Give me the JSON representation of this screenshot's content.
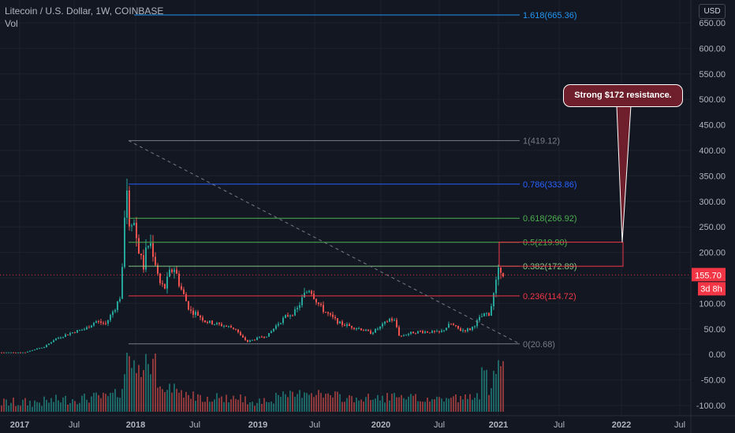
{
  "header": {
    "symbol_line": "Litecoin / U.S. Dollar, 1W, COINBASE",
    "volume_label": "Vol",
    "currency_button": "USD"
  },
  "colors": {
    "background": "#131722",
    "up": "#26a69a",
    "down": "#ef5350",
    "fib_1": "#787b86",
    "fib_0786": "#2962ff",
    "fib_0618": "#4caf50",
    "fib_05": "#4caf50",
    "fib_0382": "#81c784",
    "fib_0236": "#f23645",
    "fib_0": "#787b86",
    "fib_1618": "#2196f3",
    "price_tag": "#f23645",
    "callout_bg": "#6e1f2b"
  },
  "annotation": {
    "text": "Strong $172 resistance."
  },
  "price_tag": {
    "price": "155.70",
    "countdown": "3d 8h"
  },
  "chart_data": {
    "type": "candlestick",
    "title": "Litecoin / U.S. Dollar, 1W, COINBASE",
    "currency": "USD",
    "y_axis": {
      "ylim": [
        -110,
        670
      ],
      "tick_labels": [
        "650.00",
        "600.00",
        "550.00",
        "500.00",
        "450.00",
        "400.00",
        "350.00",
        "300.00",
        "250.00",
        "200.00",
        "150.00",
        "100.00",
        "50.00",
        "0.00",
        "-50.00",
        "-100.00"
      ]
    },
    "x_axis": {
      "tick_labels": [
        "2017",
        "Jul",
        "2018",
        "Jul",
        "2019",
        "Jul",
        "2020",
        "Jul",
        "2021",
        "Jul",
        "2022",
        "Jul"
      ]
    },
    "fibonacci_levels": [
      {
        "label": "1.618(665.36)",
        "level": 1.618,
        "price": 665.36,
        "color_key": "fib_1618"
      },
      {
        "label": "1(419.12)",
        "level": 1,
        "price": 419.12,
        "color_key": "fib_1"
      },
      {
        "label": "0.786(333.86)",
        "level": 0.786,
        "price": 333.86,
        "color_key": "fib_0786"
      },
      {
        "label": "0.618(266.92)",
        "level": 0.618,
        "price": 266.92,
        "color_key": "fib_0618"
      },
      {
        "label": "0.5(219.90)",
        "level": 0.5,
        "price": 219.9,
        "color_key": "fib_05"
      },
      {
        "label": "0.382(172.89)",
        "level": 0.382,
        "price": 172.89,
        "color_key": "fib_0382"
      },
      {
        "label": "0.236(114.72)",
        "level": 0.236,
        "price": 114.72,
        "color_key": "fib_0236"
      },
      {
        "label": "0(20.68)",
        "level": 0,
        "price": 20.68,
        "color_key": "fib_0"
      }
    ],
    "last_price": 155.7,
    "price_path": [
      [
        "2016-11",
        4
      ],
      [
        "2017-02",
        4
      ],
      [
        "2017-03",
        10
      ],
      [
        "2017-04",
        15
      ],
      [
        "2017-05",
        30
      ],
      [
        "2017-06",
        38
      ],
      [
        "2017-07",
        45
      ],
      [
        "2017-08",
        50
      ],
      [
        "2017-09",
        65
      ],
      [
        "2017-10",
        60
      ],
      [
        "2017-11",
        95
      ],
      [
        "2017-12-01",
        120
      ],
      [
        "2017-12-12",
        300
      ],
      [
        "2017-12-18",
        330
      ],
      [
        "2017-12-25",
        260
      ],
      [
        "2018-01-05",
        270
      ],
      [
        "2018-01-20",
        210
      ],
      [
        "2018-02-05",
        170
      ],
      [
        "2018-02-15",
        210
      ],
      [
        "2018-02-25",
        220
      ],
      [
        "2018-03-10",
        190
      ],
      [
        "2018-03-25",
        140
      ],
      [
        "2018-04-10",
        130
      ],
      [
        "2018-04-25",
        160
      ],
      [
        "2018-05-10",
        170
      ],
      [
        "2018-05-25",
        135
      ],
      [
        "2018-06-10",
        110
      ],
      [
        "2018-06-25",
        85
      ],
      [
        "2018-07-15",
        80
      ],
      [
        "2018-08-10",
        65
      ],
      [
        "2018-09-10",
        60
      ],
      [
        "2018-10-15",
        55
      ],
      [
        "2018-11-10",
        50
      ],
      [
        "2018-11-25",
        35
      ],
      [
        "2018-12-15",
        25
      ],
      [
        "2019-01-15",
        32
      ],
      [
        "2019-02-15",
        38
      ],
      [
        "2019-03-15",
        60
      ],
      [
        "2019-04-10",
        75
      ],
      [
        "2019-05-10",
        85
      ],
      [
        "2019-06-01",
        115
      ],
      [
        "2019-06-20",
        130
      ],
      [
        "2019-07-05",
        110
      ],
      [
        "2019-07-25",
        90
      ],
      [
        "2019-08-20",
        75
      ],
      [
        "2019-09-20",
        60
      ],
      [
        "2019-10-20",
        55
      ],
      [
        "2019-11-20",
        50
      ],
      [
        "2019-12-20",
        42
      ],
      [
        "2020-01-20",
        55
      ],
      [
        "2020-02-15",
        70
      ],
      [
        "2020-03-01",
        65
      ],
      [
        "2020-03-15",
        35
      ],
      [
        "2020-04-15",
        42
      ],
      [
        "2020-05-15",
        45
      ],
      [
        "2020-06-15",
        44
      ],
      [
        "2020-07-15",
        43
      ],
      [
        "2020-08-15",
        60
      ],
      [
        "2020-09-15",
        47
      ],
      [
        "2020-10-15",
        50
      ],
      [
        "2020-11-10",
        70
      ],
      [
        "2020-11-25",
        80
      ],
      [
        "2020-12-10",
        80
      ],
      [
        "2020-12-25",
        125
      ],
      [
        "2021-01-05",
        160
      ],
      [
        "2021-01-15",
        172
      ],
      [
        "2021-01-22",
        155.7
      ]
    ]
  }
}
